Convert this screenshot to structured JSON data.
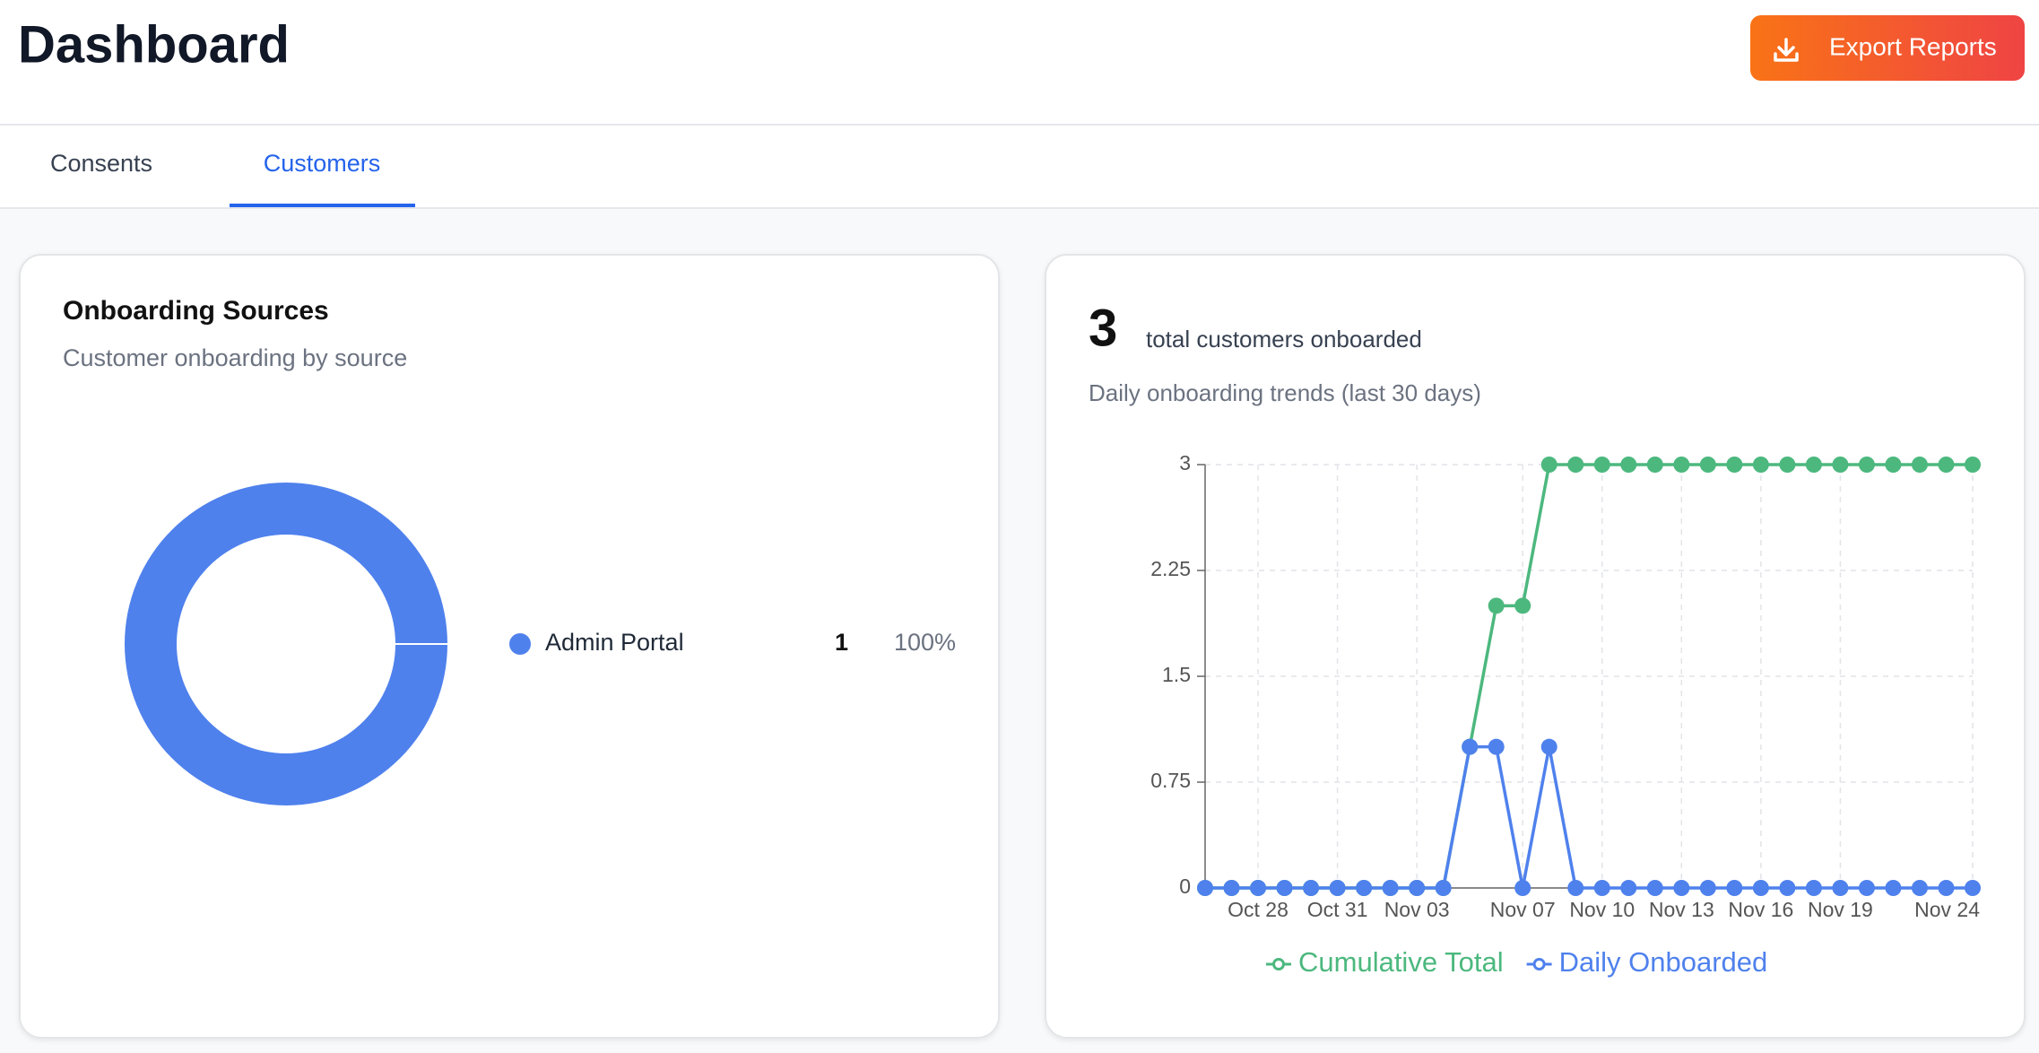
{
  "header": {
    "title": "Dashboard",
    "button": "Export Reports"
  },
  "tabs": [
    {
      "label": "Consents",
      "active": false
    },
    {
      "label": "Customers",
      "active": true
    }
  ],
  "chart_data": [
    {
      "type": "donut",
      "title": "Onboarding Sources",
      "subtitle": "Customer onboarding by source",
      "categories": [
        "Admin Portal"
      ],
      "values": [
        1
      ],
      "percent_labels": [
        "100%"
      ],
      "colors": [
        "#4f81ed"
      ]
    },
    {
      "type": "line",
      "headline": 3,
      "headline_label": "total customers onboarded",
      "subtitle": "Daily onboarding trends (last 30 days)",
      "categories": [
        null,
        null,
        "Oct 28",
        null,
        null,
        "Oct 31",
        null,
        null,
        "Nov 03",
        null,
        null,
        null,
        "Nov 07",
        null,
        null,
        "Nov 10",
        null,
        null,
        "Nov 13",
        null,
        null,
        "Nov 16",
        null,
        null,
        "Nov 19",
        null,
        null,
        null,
        null,
        "Nov 24"
      ],
      "series": [
        {
          "name": "Cumulative Total",
          "color": "#4cb87e",
          "values": [
            0,
            0,
            0,
            0,
            0,
            0,
            0,
            0,
            0,
            0,
            1,
            2,
            2,
            3,
            3,
            3,
            3,
            3,
            3,
            3,
            3,
            3,
            3,
            3,
            3,
            3,
            3,
            3,
            3,
            3
          ]
        },
        {
          "name": "Daily Onboarded",
          "color": "#4f81ed",
          "values": [
            0,
            0,
            0,
            0,
            0,
            0,
            0,
            0,
            0,
            0,
            1,
            1,
            0,
            1,
            0,
            0,
            0,
            0,
            0,
            0,
            0,
            0,
            0,
            0,
            0,
            0,
            0,
            0,
            0,
            0
          ]
        }
      ],
      "ylim": [
        0,
        3
      ],
      "yticks": [
        0,
        0.75,
        1.5,
        2.25,
        3
      ],
      "grid": true
    }
  ]
}
